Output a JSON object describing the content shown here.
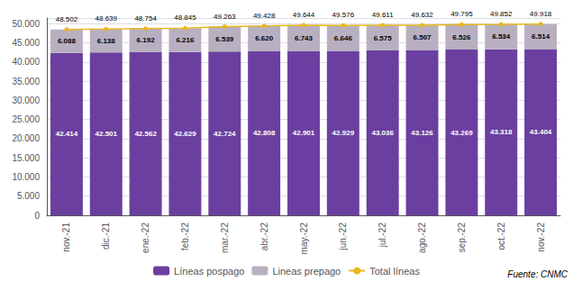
{
  "chart_data": {
    "type": "bar",
    "categories": [
      "nov.-21",
      "dic.-21",
      "ene.-22",
      "feb.-22",
      "mar.-22",
      "abr.-22",
      "may.-22",
      "jun.-22",
      "jul.-22",
      "ago.-22",
      "sep.-22",
      "oct.-22",
      "nov.-22"
    ],
    "series": [
      {
        "name": "Líneas pospago",
        "type": "bar",
        "color": "#6b3fa0",
        "values": [
          42414,
          42501,
          42562,
          42629,
          42724,
          42808,
          42901,
          42929,
          43036,
          43126,
          43269,
          43318,
          43404
        ],
        "value_labels": [
          "42.414",
          "42.501",
          "42.562",
          "42.629",
          "42.724",
          "42.808",
          "42.901",
          "42.929",
          "43.036",
          "43.126",
          "43.269",
          "43.318",
          "43.404"
        ]
      },
      {
        "name": "Lineas prepago",
        "type": "bar",
        "color": "#b8b0c0",
        "values": [
          6088,
          6138,
          6192,
          6216,
          6539,
          6620,
          6743,
          6646,
          6575,
          6507,
          6526,
          6534,
          6514
        ],
        "value_labels": [
          "6.088",
          "6.138",
          "6.192",
          "6.216",
          "6.539",
          "6.620",
          "6.743",
          "6.646",
          "6.575",
          "6.507",
          "6.526",
          "6.534",
          "6.514"
        ]
      },
      {
        "name": "Total líneas",
        "type": "line",
        "color": "#e8b820",
        "marker": "circle",
        "values": [
          48502,
          48639,
          48754,
          48845,
          49263,
          49428,
          49644,
          49576,
          49611,
          49632,
          49795,
          49852,
          49918
        ],
        "value_labels": [
          "48.502",
          "48.639",
          "48.754",
          "48.845",
          "49.263",
          "49.428",
          "49.644",
          "49.576",
          "49.611",
          "49.632",
          "49.795",
          "49.852",
          "49.918"
        ]
      }
    ],
    "stacked": true,
    "data_labels": true,
    "ylim": [
      0,
      51500
    ],
    "yticks": [
      0,
      {
        "value": 5000,
        "label": "5.000"
      },
      {
        "value": 10000,
        "label": "10.000"
      },
      {
        "value": 15000,
        "label": "15.000"
      },
      {
        "value": 20000,
        "label": "20.000"
      },
      {
        "value": 25000,
        "label": "25.000"
      },
      {
        "value": 30000,
        "label": "30.000"
      },
      {
        "value": 35000,
        "label": "35.000"
      },
      {
        "value": 40000,
        "label": "40.000"
      },
      {
        "value": 45000,
        "label": "45.000"
      },
      {
        "value": 50000,
        "label": "50.000"
      }
    ],
    "grid": true,
    "legend": "bottom",
    "annotations": [
      "Fuente: CNMC"
    ]
  }
}
